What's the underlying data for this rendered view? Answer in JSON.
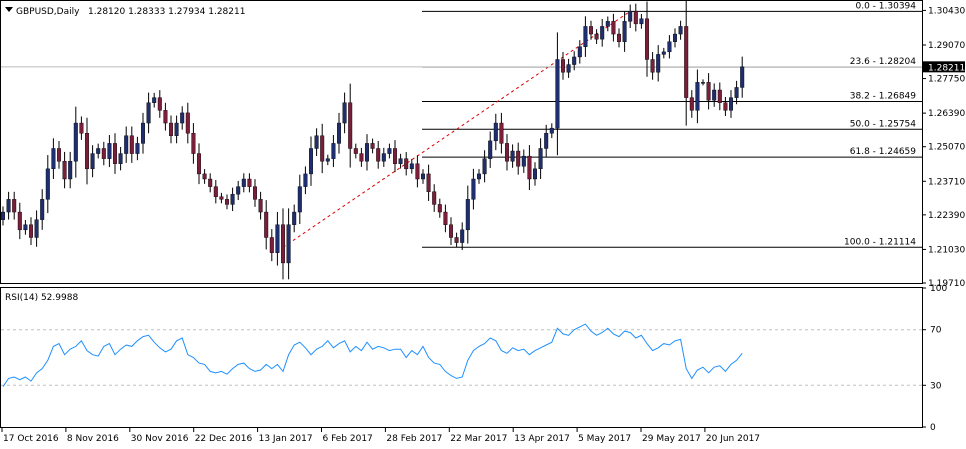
{
  "chart_data": [
    {
      "type": "candlestick",
      "symbol": "GBPUSD,Daily",
      "ohlc_header": "1.28120 1.28333 1.27934 1.28211",
      "current_price_label": "1.28211",
      "current_price": 1.28211,
      "ylim": [
        1.1971,
        1.308
      ],
      "price_ticks": [
        {
          "value": 1.3043,
          "label": "1.30430"
        },
        {
          "value": 1.2907,
          "label": "1.29070"
        },
        {
          "value": 1.2775,
          "label": "1.27750"
        },
        {
          "value": 1.2639,
          "label": "1.26390"
        },
        {
          "value": 1.2507,
          "label": "1.25070"
        },
        {
          "value": 1.2371,
          "label": "1.23710"
        },
        {
          "value": 1.2239,
          "label": "1.22390"
        },
        {
          "value": 1.2103,
          "label": "1.21030"
        },
        {
          "value": 1.1971,
          "label": "1.19710"
        }
      ],
      "fibonacci": [
        {
          "value": 1.30394,
          "label": "0.0 - 1.30394"
        },
        {
          "value": 1.28204,
          "label": "23.6 - 1.28204"
        },
        {
          "value": 1.26849,
          "label": "38.2 - 1.26849"
        },
        {
          "value": 1.25754,
          "label": "50.0 - 1.25754"
        },
        {
          "value": 1.24659,
          "label": "61.8 - 1.24659"
        },
        {
          "value": 1.21114,
          "label": "100.0 - 1.21114"
        }
      ],
      "fib_trendline": {
        "from_price": 1.21114,
        "to_price": 1.30394
      },
      "x_labels": [
        "17 Oct 2016",
        "8 Nov 2016",
        "30 Nov 2016",
        "22 Dec 2016",
        "13 Jan 2017",
        "6 Feb 2017",
        "28 Feb 2017",
        "22 Mar 2017",
        "13 Apr 2017",
        "5 May 2017",
        "29 May 2017",
        "20 Jun 2017"
      ],
      "closes": [
        1.225,
        1.23,
        1.225,
        1.218,
        1.22,
        1.215,
        1.222,
        1.23,
        1.242,
        1.25,
        1.245,
        1.238,
        1.245,
        1.26,
        1.256,
        1.242,
        1.248,
        1.25,
        1.246,
        1.252,
        1.244,
        1.248,
        1.255,
        1.248,
        1.252,
        1.26,
        1.268,
        1.27,
        1.265,
        1.26,
        1.255,
        1.26,
        1.264,
        1.256,
        1.248,
        1.24,
        1.238,
        1.235,
        1.231,
        1.23,
        1.228,
        1.232,
        1.235,
        1.238,
        1.235,
        1.23,
        1.225,
        1.215,
        1.209,
        1.22,
        1.205,
        1.22,
        1.225,
        1.235,
        1.24,
        1.25,
        1.255,
        1.245,
        1.246,
        1.252,
        1.26,
        1.268,
        1.25,
        1.248,
        1.245,
        1.252,
        1.25,
        1.245,
        1.248,
        1.25,
        1.244,
        1.246,
        1.242,
        1.244,
        1.238,
        1.24,
        1.233,
        1.228,
        1.225,
        1.22,
        1.215,
        1.213,
        1.218,
        1.23,
        1.238,
        1.24,
        1.246,
        1.253,
        1.26,
        1.252,
        1.245,
        1.249,
        1.243,
        1.247,
        1.238,
        1.242,
        1.25,
        1.256,
        1.258,
        1.285,
        1.28,
        1.283,
        1.286,
        1.29,
        1.298,
        1.295,
        1.293,
        1.298,
        1.3,
        1.295,
        1.292,
        1.3,
        1.304,
        1.299,
        1.301,
        1.285,
        1.28,
        1.287,
        1.288,
        1.292,
        1.295,
        1.298,
        1.27,
        1.265,
        1.276,
        1.276,
        1.269,
        1.273,
        1.268,
        1.265,
        1.27,
        1.274,
        1.2821
      ]
    },
    {
      "type": "line",
      "indicator": "RSI(14) 52.9988",
      "ylim": [
        0,
        100
      ],
      "ticks": [
        {
          "value": 100,
          "label": "100"
        },
        {
          "value": 70,
          "label": "70"
        },
        {
          "value": 30,
          "label": "30"
        },
        {
          "value": 0,
          "label": "0"
        }
      ],
      "levels": [
        70,
        30
      ],
      "values": [
        29,
        35,
        36,
        34,
        36,
        33,
        39,
        42,
        48,
        58,
        60,
        52,
        56,
        58,
        62,
        55,
        52,
        51,
        58,
        60,
        52,
        56,
        59,
        58,
        62,
        65,
        66,
        61,
        57,
        54,
        56,
        62,
        64,
        52,
        50,
        46,
        45,
        40,
        39,
        40,
        38,
        42,
        45,
        46,
        42,
        40,
        41,
        45,
        42,
        45,
        40,
        52,
        59,
        61,
        57,
        52,
        56,
        58,
        62,
        57,
        60,
        62,
        54,
        58,
        55,
        61,
        56,
        58,
        57,
        55,
        56,
        56,
        50,
        55,
        52,
        58,
        50,
        46,
        45,
        40,
        37,
        35,
        36,
        48,
        55,
        58,
        60,
        64,
        62,
        55,
        53,
        57,
        55,
        56,
        52,
        55,
        57,
        59,
        61,
        71,
        67,
        66,
        70,
        72,
        74,
        69,
        66,
        68,
        71,
        67,
        65,
        69,
        68,
        64,
        66,
        60,
        55,
        57,
        60,
        59,
        62,
        63,
        42,
        35,
        41,
        43,
        39,
        43,
        44,
        40,
        45,
        48,
        53
      ]
    }
  ]
}
